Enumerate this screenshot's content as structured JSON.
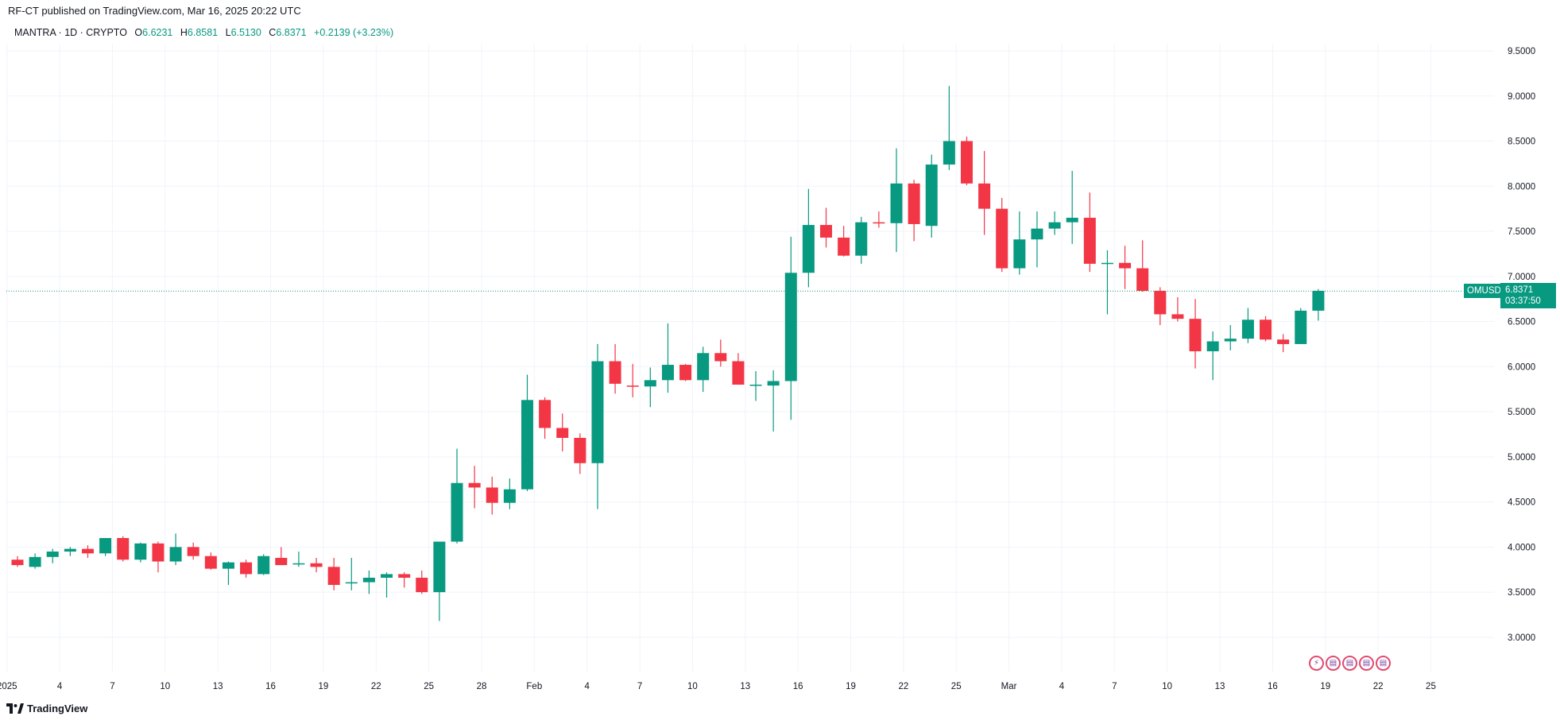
{
  "header": {
    "published": "RF-CT published on TradingView.com, Mar 16, 2025 20:22 UTC"
  },
  "legend": {
    "symbol": "MANTRA · 1D · CRYPTO",
    "o_label": "O",
    "o": "6.6231",
    "h_label": "H",
    "h": "6.8581",
    "l_label": "L",
    "l": "6.5130",
    "c_label": "C",
    "c": "6.8371",
    "change": "+0.2139 (+3.23%)"
  },
  "price_tag": {
    "symbol": "OMUSD",
    "price": "6.8371",
    "countdown": "03:37:50"
  },
  "footer": {
    "brand": "TradingView"
  },
  "colors": {
    "up": "#089981",
    "down": "#f23645",
    "grid": "#f0f3fa",
    "text": "#131722"
  },
  "chart_data": {
    "type": "candlestick",
    "y_ticks": [
      "3.0000",
      "3.5000",
      "4.0000",
      "4.5000",
      "5.0000",
      "5.5000",
      "6.0000",
      "6.5000",
      "7.0000",
      "7.5000",
      "8.0000",
      "8.5000",
      "9.0000",
      "9.5000"
    ],
    "ylim": [
      2.65,
      9.75
    ],
    "x_ticks": [
      "2025",
      "4",
      "7",
      "10",
      "13",
      "16",
      "19",
      "22",
      "25",
      "28",
      "Feb",
      "4",
      "7",
      "10",
      "13",
      "16",
      "19",
      "22",
      "25",
      "Mar",
      "4",
      "7",
      "10",
      "13",
      "16",
      "19",
      "22",
      "25"
    ],
    "last_price": 6.8371,
    "candles": [
      {
        "o": 3.86,
        "h": 3.9,
        "l": 3.78,
        "c": 3.8
      },
      {
        "o": 3.78,
        "h": 3.93,
        "l": 3.76,
        "c": 3.89
      },
      {
        "o": 3.89,
        "h": 3.98,
        "l": 3.82,
        "c": 3.95
      },
      {
        "o": 3.95,
        "h": 4.0,
        "l": 3.9,
        "c": 3.98
      },
      {
        "o": 3.98,
        "h": 4.02,
        "l": 3.88,
        "c": 3.93
      },
      {
        "o": 3.93,
        "h": 4.1,
        "l": 3.9,
        "c": 4.1
      },
      {
        "o": 4.1,
        "h": 4.12,
        "l": 3.84,
        "c": 3.86
      },
      {
        "o": 3.86,
        "h": 4.05,
        "l": 3.83,
        "c": 4.04
      },
      {
        "o": 4.04,
        "h": 4.06,
        "l": 3.72,
        "c": 3.84
      },
      {
        "o": 3.84,
        "h": 4.15,
        "l": 3.8,
        "c": 4.0
      },
      {
        "o": 4.0,
        "h": 4.05,
        "l": 3.86,
        "c": 3.9
      },
      {
        "o": 3.9,
        "h": 3.94,
        "l": 3.75,
        "c": 3.76
      },
      {
        "o": 3.76,
        "h": 3.84,
        "l": 3.58,
        "c": 3.83
      },
      {
        "o": 3.83,
        "h": 3.86,
        "l": 3.66,
        "c": 3.7
      },
      {
        "o": 3.7,
        "h": 3.92,
        "l": 3.69,
        "c": 3.9
      },
      {
        "o": 3.88,
        "h": 4.0,
        "l": 3.8,
        "c": 3.8
      },
      {
        "o": 3.82,
        "h": 3.95,
        "l": 3.78,
        "c": 3.82
      },
      {
        "o": 3.82,
        "h": 3.88,
        "l": 3.72,
        "c": 3.78
      },
      {
        "o": 3.78,
        "h": 3.88,
        "l": 3.52,
        "c": 3.58
      },
      {
        "o": 3.6,
        "h": 3.88,
        "l": 3.52,
        "c": 3.61
      },
      {
        "o": 3.61,
        "h": 3.74,
        "l": 3.48,
        "c": 3.66
      },
      {
        "o": 3.66,
        "h": 3.72,
        "l": 3.44,
        "c": 3.7
      },
      {
        "o": 3.7,
        "h": 3.72,
        "l": 3.55,
        "c": 3.66
      },
      {
        "o": 3.66,
        "h": 3.74,
        "l": 3.48,
        "c": 3.5
      },
      {
        "o": 3.5,
        "h": 4.06,
        "l": 3.18,
        "c": 4.06
      },
      {
        "o": 4.06,
        "h": 5.09,
        "l": 4.04,
        "c": 4.71
      },
      {
        "o": 4.71,
        "h": 4.9,
        "l": 4.43,
        "c": 4.66
      },
      {
        "o": 4.66,
        "h": 4.78,
        "l": 4.36,
        "c": 4.49
      },
      {
        "o": 4.49,
        "h": 4.76,
        "l": 4.42,
        "c": 4.64
      },
      {
        "o": 4.64,
        "h": 5.91,
        "l": 4.62,
        "c": 5.63
      },
      {
        "o": 5.63,
        "h": 5.66,
        "l": 5.2,
        "c": 5.32
      },
      {
        "o": 5.32,
        "h": 5.48,
        "l": 5.06,
        "c": 5.21
      },
      {
        "o": 5.21,
        "h": 5.26,
        "l": 4.81,
        "c": 4.93
      },
      {
        "o": 4.93,
        "h": 6.25,
        "l": 4.42,
        "c": 6.06
      },
      {
        "o": 6.06,
        "h": 6.25,
        "l": 5.7,
        "c": 5.81
      },
      {
        "o": 5.79,
        "h": 6.03,
        "l": 5.66,
        "c": 5.78
      },
      {
        "o": 5.78,
        "h": 5.99,
        "l": 5.55,
        "c": 5.85
      },
      {
        "o": 5.85,
        "h": 6.48,
        "l": 5.71,
        "c": 6.02
      },
      {
        "o": 6.02,
        "h": 6.03,
        "l": 5.84,
        "c": 5.85
      },
      {
        "o": 5.85,
        "h": 6.22,
        "l": 5.72,
        "c": 6.15
      },
      {
        "o": 6.15,
        "h": 6.3,
        "l": 6.0,
        "c": 6.06
      },
      {
        "o": 6.06,
        "h": 6.15,
        "l": 5.82,
        "c": 5.8
      },
      {
        "o": 5.8,
        "h": 5.95,
        "l": 5.62,
        "c": 5.8
      },
      {
        "o": 5.79,
        "h": 5.96,
        "l": 5.28,
        "c": 5.84
      },
      {
        "o": 5.84,
        "h": 7.44,
        "l": 5.41,
        "c": 7.04
      },
      {
        "o": 7.04,
        "h": 7.97,
        "l": 6.88,
        "c": 7.57
      },
      {
        "o": 7.57,
        "h": 7.76,
        "l": 7.32,
        "c": 7.43
      },
      {
        "o": 7.43,
        "h": 7.56,
        "l": 7.22,
        "c": 7.23
      },
      {
        "o": 7.23,
        "h": 7.66,
        "l": 7.14,
        "c": 7.6
      },
      {
        "o": 7.6,
        "h": 7.72,
        "l": 7.54,
        "c": 7.59
      },
      {
        "o": 7.59,
        "h": 8.42,
        "l": 7.27,
        "c": 8.03
      },
      {
        "o": 8.03,
        "h": 8.07,
        "l": 7.39,
        "c": 7.58
      },
      {
        "o": 7.56,
        "h": 8.35,
        "l": 7.43,
        "c": 8.24
      },
      {
        "o": 8.24,
        "h": 9.11,
        "l": 8.18,
        "c": 8.5
      },
      {
        "o": 8.5,
        "h": 8.55,
        "l": 8.01,
        "c": 8.03
      },
      {
        "o": 8.03,
        "h": 8.39,
        "l": 7.46,
        "c": 7.75
      },
      {
        "o": 7.75,
        "h": 7.87,
        "l": 7.05,
        "c": 7.09
      },
      {
        "o": 7.09,
        "h": 7.72,
        "l": 7.02,
        "c": 7.41
      },
      {
        "o": 7.41,
        "h": 7.72,
        "l": 7.1,
        "c": 7.53
      },
      {
        "o": 7.53,
        "h": 7.72,
        "l": 7.46,
        "c": 7.6
      },
      {
        "o": 7.6,
        "h": 8.17,
        "l": 7.36,
        "c": 7.65
      },
      {
        "o": 7.65,
        "h": 7.93,
        "l": 7.05,
        "c": 7.14
      },
      {
        "o": 7.14,
        "h": 7.29,
        "l": 6.58,
        "c": 7.15
      },
      {
        "o": 7.15,
        "h": 7.34,
        "l": 6.86,
        "c": 7.09
      },
      {
        "o": 7.09,
        "h": 7.4,
        "l": 6.83,
        "c": 6.84
      },
      {
        "o": 6.84,
        "h": 6.88,
        "l": 6.46,
        "c": 6.58
      },
      {
        "o": 6.58,
        "h": 6.77,
        "l": 6.5,
        "c": 6.53
      },
      {
        "o": 6.53,
        "h": 6.75,
        "l": 5.98,
        "c": 6.17
      },
      {
        "o": 6.17,
        "h": 6.39,
        "l": 5.85,
        "c": 6.28
      },
      {
        "o": 6.28,
        "h": 6.46,
        "l": 6.18,
        "c": 6.31
      },
      {
        "o": 6.31,
        "h": 6.65,
        "l": 6.26,
        "c": 6.52
      },
      {
        "o": 6.52,
        "h": 6.56,
        "l": 6.28,
        "c": 6.3
      },
      {
        "o": 6.3,
        "h": 6.36,
        "l": 6.16,
        "c": 6.25
      },
      {
        "o": 6.25,
        "h": 6.65,
        "l": 6.25,
        "c": 6.62
      },
      {
        "o": 6.62,
        "h": 6.86,
        "l": 6.51,
        "c": 6.84
      }
    ]
  }
}
